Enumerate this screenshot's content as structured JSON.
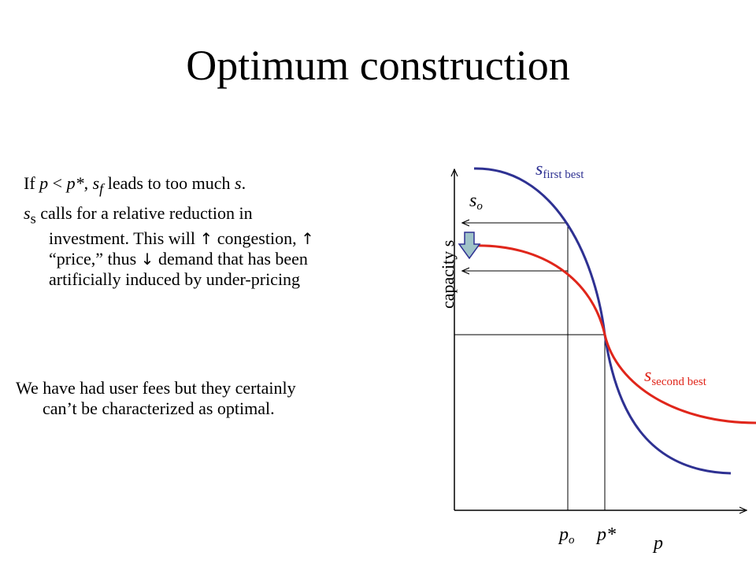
{
  "slide": {
    "title": "Optimum construction"
  },
  "text": {
    "p1": {
      "a": "If ",
      "b": "p",
      "c": " < ",
      "d": "p*",
      "e": ", ",
      "f": "s",
      "g": "f",
      "h": " leads to too much ",
      "i": "s",
      "j": "."
    },
    "p2": {
      "a": "s",
      "b": "s",
      "c": " calls for a relative reduction in",
      "d": "investment.  This will ",
      "up1": "↑",
      "e": " congestion, ",
      "up2": "↑",
      "f": "“price,”  thus ",
      "down": "↓",
      "g": " demand that has been",
      "h": "artificially induced by under-pricing"
    },
    "p3": {
      "a": "We have had user fees but they certainly",
      "b": "can’t be characterized as optimal."
    }
  },
  "diagram": {
    "y_axis_label": "capacity s",
    "x_axis_label": "p",
    "curve_first_best": {
      "symbol": "s",
      "subscript": "first best",
      "color": "#2e3192"
    },
    "curve_second_best": {
      "symbol": "s",
      "subscript": "second best",
      "color": "#e0261b"
    },
    "s_o": {
      "symbol": "s",
      "subscript": "o"
    },
    "p_o": {
      "symbol": "p",
      "subscript": "o"
    },
    "p_star": "p*",
    "arrow_color": "#9fc3c8"
  }
}
